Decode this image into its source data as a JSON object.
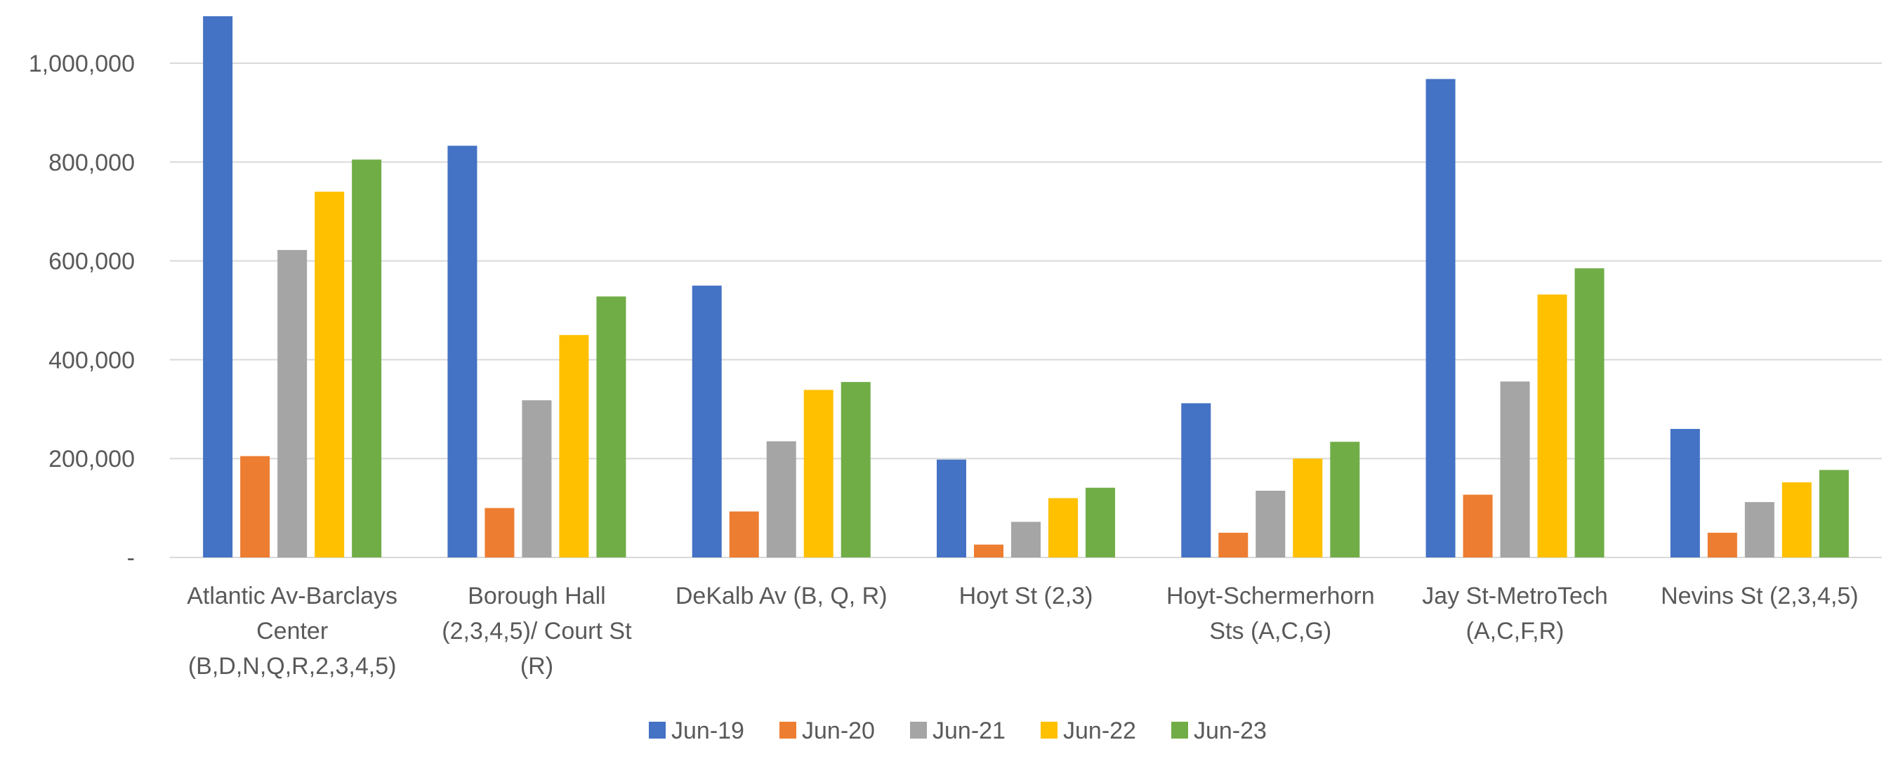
{
  "colors": {
    "background": "#ffffff",
    "gridline": "#d9d9d9",
    "axis_text": "#595959",
    "series": [
      "#4472c4",
      "#ed7d31",
      "#a5a5a5",
      "#ffc000",
      "#70ad47"
    ]
  },
  "chart_data": {
    "type": "bar",
    "title": "",
    "xlabel": "",
    "ylabel": "",
    "ylim": [
      0,
      1100000
    ],
    "y_ticks": [
      0,
      200000,
      400000,
      600000,
      800000,
      1000000
    ],
    "y_tick_labels": [
      "-",
      "200,000",
      "400,000",
      "600,000",
      "800,000",
      "1,000,000"
    ],
    "grid": true,
    "legend_position": "bottom",
    "categories": [
      [
        "Atlantic Av-Barclays",
        "Center",
        "(B,D,N,Q,R,2,3,4,5)"
      ],
      [
        "Borough Hall",
        "(2,3,4,5)/ Court St",
        "(R)"
      ],
      [
        "DeKalb Av (B, Q, R)"
      ],
      [
        "Hoyt St (2,3)"
      ],
      [
        "Hoyt-Schermerhorn",
        "Sts (A,C,G)"
      ],
      [
        "Jay St-MetroTech",
        "(A,C,F,R)"
      ],
      [
        "Nevins St (2,3,4,5)"
      ]
    ],
    "series": [
      {
        "name": "Jun-19",
        "values": [
          1095000,
          833000,
          550000,
          198000,
          312000,
          968000,
          260000
        ]
      },
      {
        "name": "Jun-20",
        "values": [
          205000,
          100000,
          93000,
          26000,
          50000,
          127000,
          50000
        ]
      },
      {
        "name": "Jun-21",
        "values": [
          622000,
          318000,
          235000,
          72000,
          135000,
          356000,
          112000
        ]
      },
      {
        "name": "Jun-22",
        "values": [
          740000,
          450000,
          339000,
          120000,
          200000,
          532000,
          152000
        ]
      },
      {
        "name": "Jun-23",
        "values": [
          805000,
          528000,
          355000,
          141000,
          234000,
          585000,
          177000
        ]
      }
    ]
  }
}
